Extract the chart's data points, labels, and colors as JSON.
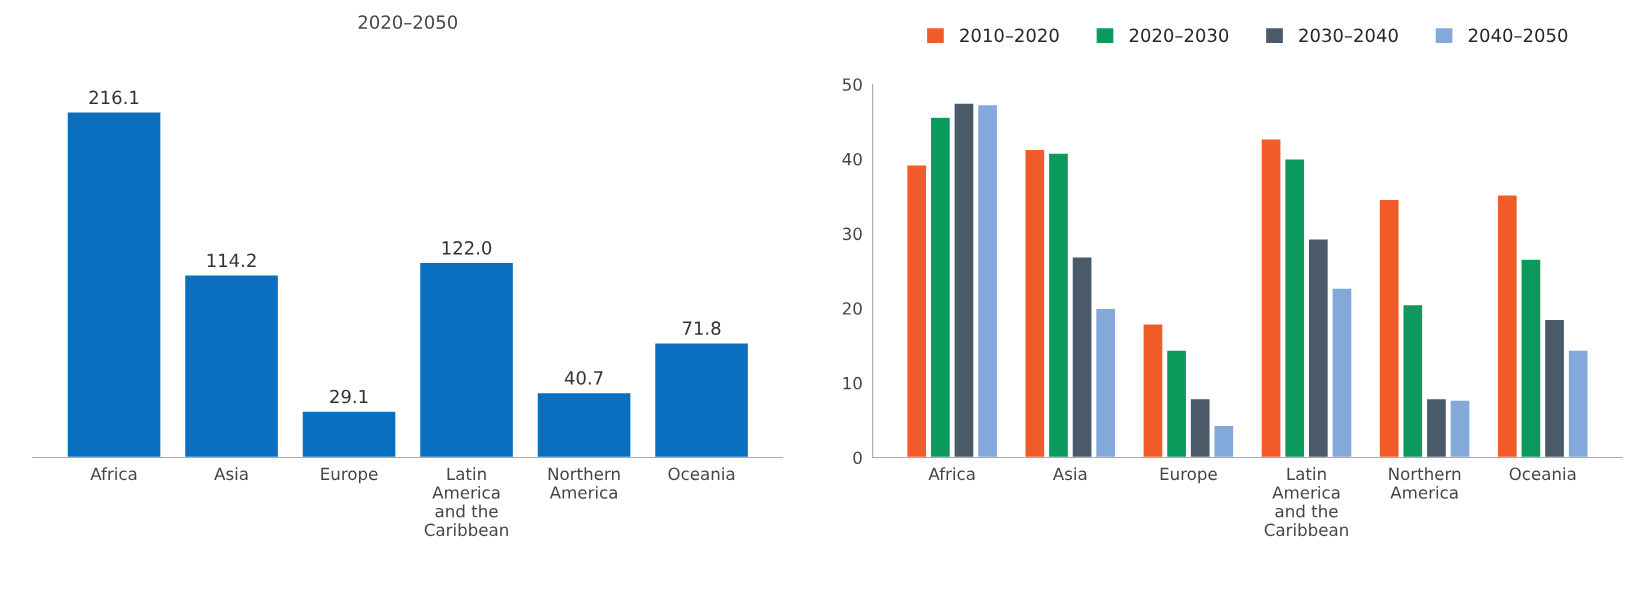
{
  "chart_data": [
    {
      "type": "bar",
      "title": "2020–2050",
      "categories": [
        "Africa",
        "Asia",
        "Europe",
        "Latin\nAmerica\nand the\nCaribbean",
        "Northern\nAmerica",
        "Oceania"
      ],
      "values": [
        216.1,
        114.2,
        29.1,
        122.0,
        40.7,
        71.8
      ],
      "value_labels": [
        "216.1",
        "114.2",
        "29.1",
        "122.0",
        "40.7",
        "71.8"
      ],
      "color": "#0b6fbf",
      "tick_labels": "x",
      "grid": false,
      "legend": false
    },
    {
      "type": "bar",
      "categories": [
        "Africa",
        "Asia",
        "Europe",
        "Latin\nAmerica\nand the\nCaribbean",
        "Northern\nAmerica",
        "Oceania"
      ],
      "series": [
        {
          "name": "2010–2020",
          "color": "#f15a29",
          "values": [
            39.2,
            41.3,
            17.9,
            42.7,
            34.6,
            35.2
          ]
        },
        {
          "name": "2020–2030",
          "color": "#0b9a5c",
          "values": [
            45.6,
            40.8,
            14.4,
            40.0,
            20.5,
            26.6
          ]
        },
        {
          "name": "2030–2040",
          "color": "#4a5a69",
          "values": [
            47.5,
            26.9,
            7.9,
            29.3,
            7.9,
            18.5
          ]
        },
        {
          "name": "2040–2050",
          "color": "#82a9da",
          "values": [
            47.3,
            20.0,
            4.3,
            22.7,
            7.7,
            14.4
          ]
        }
      ],
      "ylim": [
        0,
        50
      ],
      "yticks": [
        0,
        10,
        20,
        30,
        40,
        50
      ],
      "grid": false,
      "legend": "top"
    }
  ]
}
